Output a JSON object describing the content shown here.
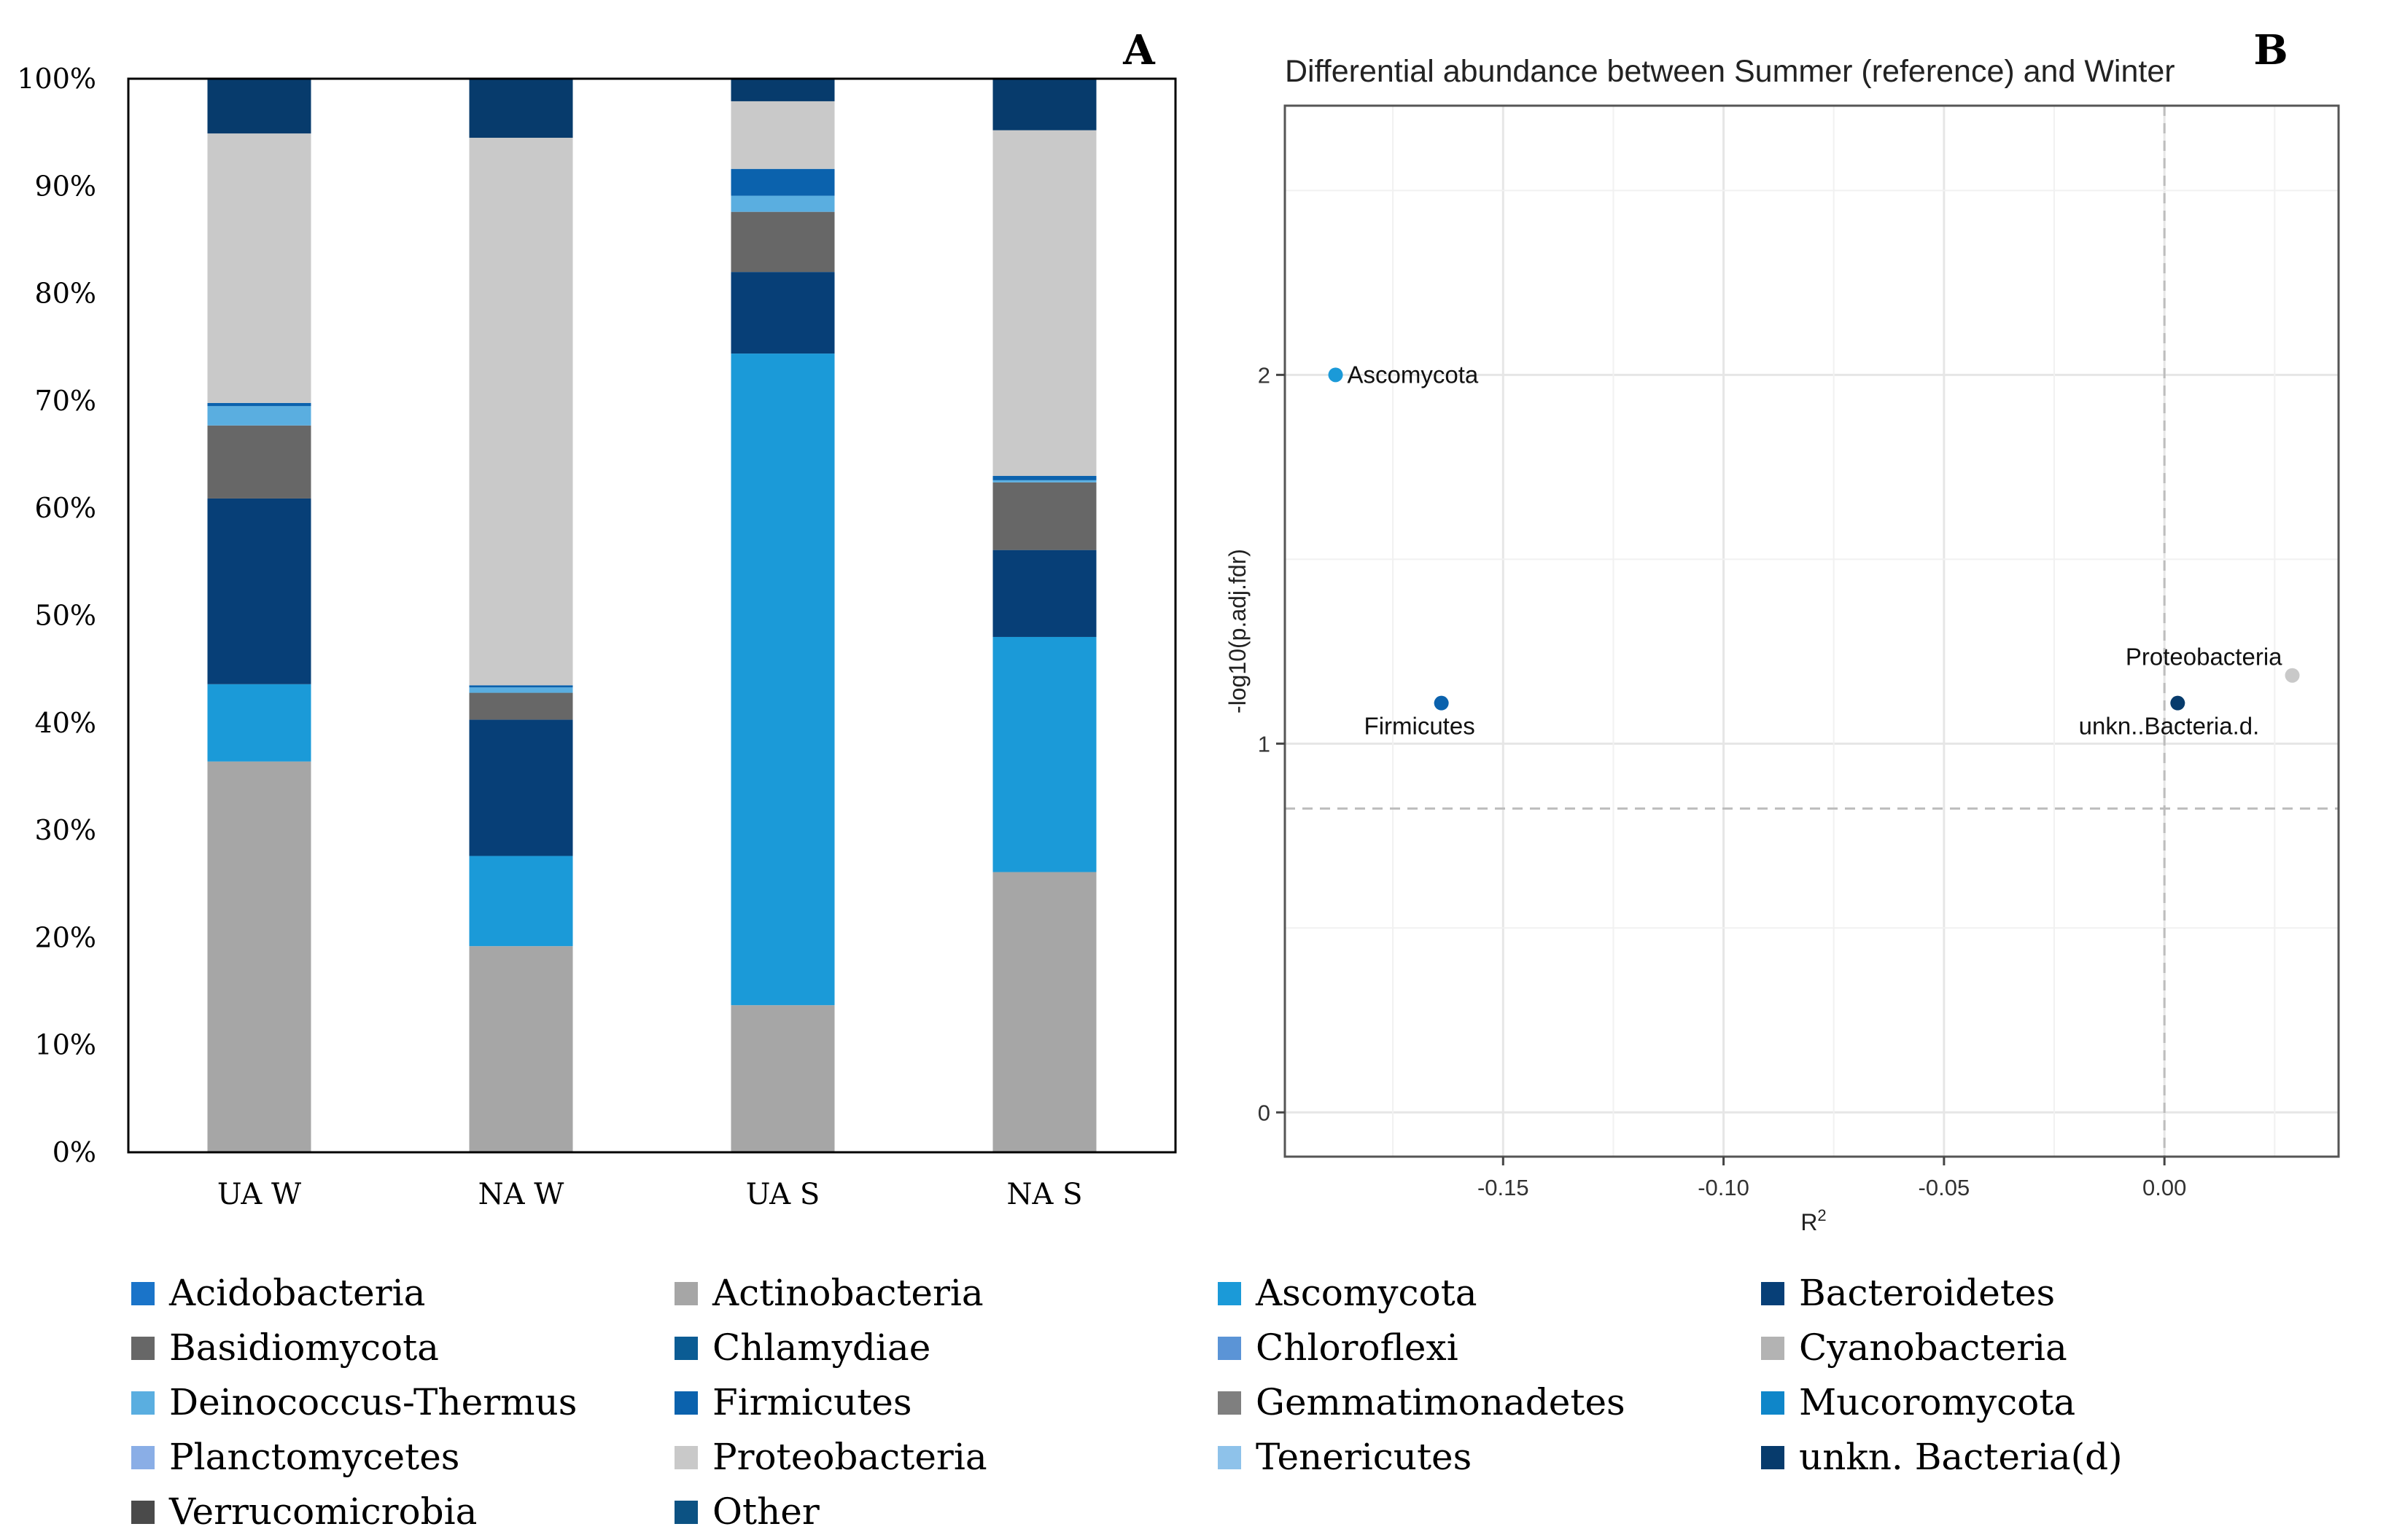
{
  "panel_labels": [
    "A",
    "B"
  ],
  "chart_data": [
    {
      "type": "bar",
      "stacked": true,
      "percent": true,
      "panel": "A",
      "title": "",
      "categories": [
        "UA W",
        "NA W",
        "UA S",
        "NA S"
      ],
      "ylim": [
        0,
        100
      ],
      "yticks": [
        0,
        10,
        20,
        30,
        40,
        50,
        60,
        70,
        80,
        90,
        100
      ],
      "ytick_labels": [
        "0%",
        "10%",
        "20%",
        "30%",
        "40%",
        "50%",
        "60%",
        "70%",
        "80%",
        "90%",
        "100%"
      ],
      "series": [
        {
          "name": "Actinobacteria",
          "color": "#a6a6a6",
          "values": [
            36.4,
            19.2,
            13.7,
            26.1
          ]
        },
        {
          "name": "Ascomycota",
          "color": "#1b9ad8",
          "values": [
            7.2,
            8.4,
            60.7,
            21.9
          ]
        },
        {
          "name": "Bacteroidetes",
          "color": "#073f77",
          "values": [
            17.3,
            12.7,
            7.6,
            8.1
          ]
        },
        {
          "name": "Basidiomycota",
          "color": "#676767",
          "values": [
            6.8,
            2.5,
            5.6,
            6.3
          ]
        },
        {
          "name": "Deinococcus-Thermus",
          "color": "#5aaee0",
          "values": [
            1.8,
            0.5,
            1.5,
            0.2
          ]
        },
        {
          "name": "Firmicutes",
          "color": "#0b62ad",
          "values": [
            0.3,
            0.2,
            2.5,
            0.4
          ]
        },
        {
          "name": "Proteobacteria",
          "color": "#c9c9c9",
          "values": [
            25.1,
            51.0,
            6.3,
            32.2
          ]
        },
        {
          "name": "unkn. Bacteria(d)",
          "color": "#073b6c",
          "values": [
            5.1,
            5.5,
            2.1,
            4.8
          ]
        }
      ],
      "legend": {
        "placement": "bottom",
        "items": [
          {
            "label": "Acidobacteria",
            "color": "#1a74c9"
          },
          {
            "label": "Actinobacteria",
            "color": "#a6a6a6"
          },
          {
            "label": "Ascomycota",
            "color": "#1b9ad8"
          },
          {
            "label": "Bacteroidetes",
            "color": "#073f77"
          },
          {
            "label": "Basidiomycota",
            "color": "#676767"
          },
          {
            "label": "Chlamydiae",
            "color": "#0b5c94"
          },
          {
            "label": "Chloroflexi",
            "color": "#5b94d6"
          },
          {
            "label": "Cyanobacteria",
            "color": "#b3b3b3"
          },
          {
            "label": "Deinococcus-Thermus",
            "color": "#5aaee0"
          },
          {
            "label": "Firmicutes",
            "color": "#0b62ad"
          },
          {
            "label": "Gemmatimonadetes",
            "color": "#7f7f7f"
          },
          {
            "label": "Mucoromycota",
            "color": "#0f86c9"
          },
          {
            "label": "Planctomycetes",
            "color": "#8aaee6"
          },
          {
            "label": "Proteobacteria",
            "color": "#c9c9c9"
          },
          {
            "label": "Tenericutes",
            "color": "#8ec2ea"
          },
          {
            "label": "unkn. Bacteria(d)",
            "color": "#073b6c"
          },
          {
            "label": "Verrucomicrobia",
            "color": "#4a4a4a"
          },
          {
            "label": "Other",
            "color": "#0c5283"
          }
        ]
      }
    },
    {
      "type": "scatter",
      "panel": "B",
      "title": "Differential abundance between Summer (reference) and Winter",
      "xlabel": "R",
      "xlabel_sup": "2",
      "ylabel": "-log10(p.adj.fdr)",
      "xlim": [
        -0.1995,
        0.0395
      ],
      "ylim": [
        -0.12,
        2.73
      ],
      "xticks": [
        -0.15,
        -0.1,
        -0.05,
        0.0
      ],
      "xtick_labels": [
        "-0.15",
        "-0.10",
        "-0.05",
        "0.00"
      ],
      "yticks": [
        0,
        1,
        2
      ],
      "ytick_labels": [
        "0",
        "1",
        "2"
      ],
      "grid": true,
      "reference_lines": {
        "x": 0.0,
        "y": 0.824
      },
      "points": [
        {
          "label": "Ascomycota",
          "x": -0.188,
          "y": 2.0,
          "color": "#1b9ad8",
          "label_anchor": "right"
        },
        {
          "label": "Firmicutes",
          "x": -0.164,
          "y": 1.11,
          "color": "#0b62ad",
          "label_anchor": "below"
        },
        {
          "label": "Proteobacteria",
          "x": 0.029,
          "y": 1.185,
          "color": "#c9c9c9",
          "label_anchor": "above-left"
        },
        {
          "label": "unkn..Bacteria.d.",
          "x": 0.003,
          "y": 1.11,
          "color": "#073b6c",
          "label_anchor": "below-left"
        }
      ]
    }
  ]
}
